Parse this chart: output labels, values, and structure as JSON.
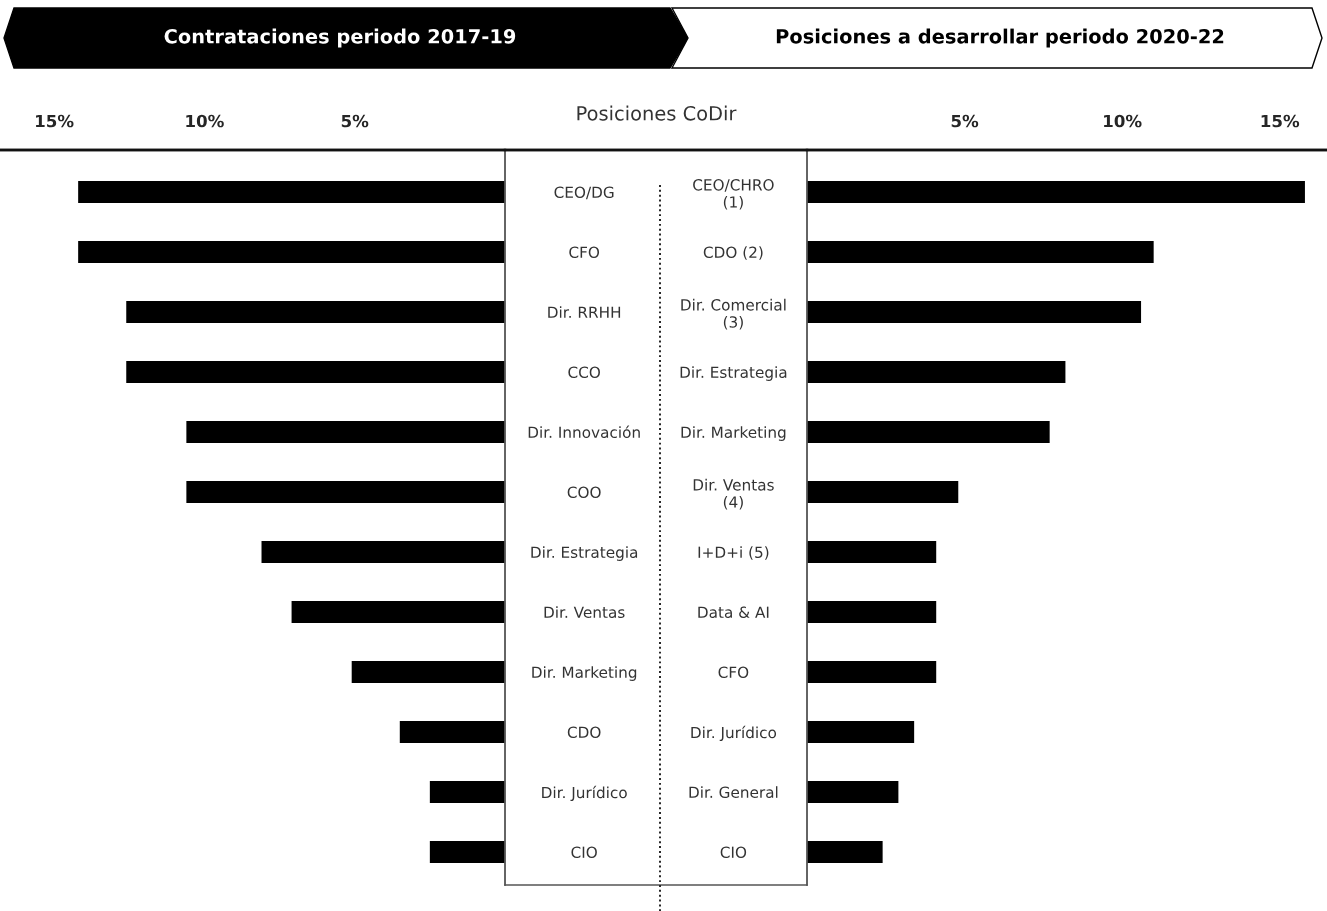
{
  "chart_data": [
    {
      "type": "bar",
      "orientation": "horizontal",
      "title": "Contrataciones periodo 2017-19",
      "annotations": [
        "Posiciones CoDir"
      ],
      "categories": [
        "CEO/DG",
        "CFO",
        "Dir. RRHH",
        "CCO",
        "Dir. Innovación",
        "COO",
        "Dir. Estrategia",
        "Dir. Ventas",
        "Dir. Marketing",
        "CDO",
        "Dir. Jurídico",
        "CIO"
      ],
      "values": [
        14.2,
        14.2,
        12.6,
        12.6,
        10.6,
        10.6,
        8.1,
        7.1,
        5.1,
        3.5,
        2.5,
        2.5
      ],
      "color": "#000000",
      "xlim": [
        16.8,
        0
      ],
      "xticks": [
        {
          "value": 15,
          "label": "15%"
        },
        {
          "value": 10,
          "label": "10%"
        },
        {
          "value": 5,
          "label": "5%"
        }
      ]
    },
    {
      "type": "bar",
      "orientation": "horizontal",
      "title": "Posiciones a desarrollar periodo 2020-22",
      "categories": [
        "CEO/CHRO\n(1)",
        "CDO (2)",
        "Dir. Comercial\n(3)",
        "Dir. Estrategia",
        "Dir. Marketing",
        "Dir. Ventas\n(4)",
        "I+D+i (5)",
        "Data & AI",
        "CFO",
        "Dir. Jurídico",
        "Dir. General",
        "CIO"
      ],
      "values": [
        15.8,
        11.0,
        10.6,
        8.2,
        7.7,
        4.8,
        4.1,
        4.1,
        4.1,
        3.4,
        2.9,
        2.4
      ],
      "color": "#000000",
      "xlim": [
        0,
        16.5
      ],
      "xticks": [
        {
          "value": 5,
          "label": "5%"
        },
        {
          "value": 10,
          "label": "10%"
        },
        {
          "value": 15,
          "label": "15%"
        }
      ]
    }
  ]
}
